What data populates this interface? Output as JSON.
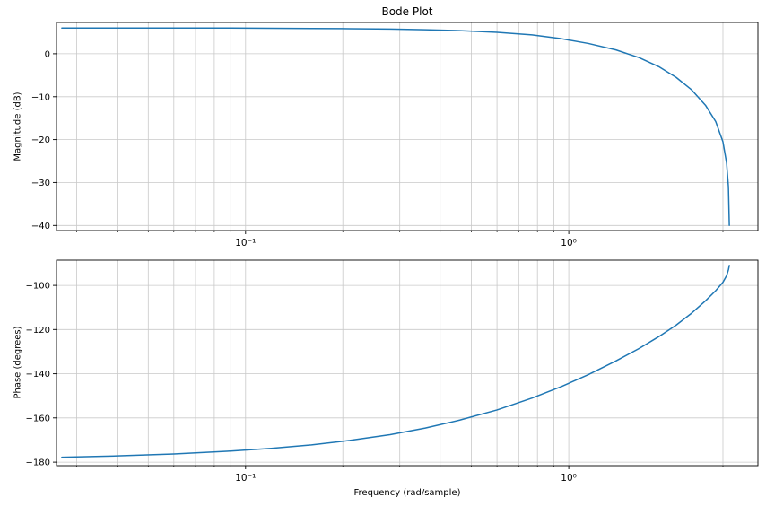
{
  "figure": {
    "title": "Bode Plot",
    "background": "#ffffff",
    "line_color": "#1f77b4",
    "grid_color": "#c9c9c9",
    "spine_color": "#000000",
    "text_color": "#000000"
  },
  "chart_data": [
    {
      "type": "line",
      "title": "Bode Plot",
      "ylabel": "Magnitude (dB)",
      "xlabel": "",
      "xscale": "log",
      "grid": true,
      "legend": "none",
      "xlim": [
        0.026,
        3.85
      ],
      "ylim": [
        -41.2,
        7.3
      ],
      "xticks": [
        0.1,
        1
      ],
      "xtick_labels": [
        "10⁻¹",
        "10⁰"
      ],
      "yticks": [
        0,
        -10,
        -20,
        -30,
        -40
      ],
      "ytick_labels": [
        "0",
        "−10",
        "−20",
        "−30",
        "−40"
      ],
      "series": [
        {
          "name": "magnitude",
          "color": "#1f77b4",
          "x": [
            0.027,
            0.04,
            0.06,
            0.09,
            0.12,
            0.16,
            0.21,
            0.28,
            0.36,
            0.46,
            0.6,
            0.77,
            0.95,
            1.15,
            1.4,
            1.65,
            1.9,
            2.15,
            2.4,
            2.65,
            2.85,
            3.0,
            3.08,
            3.12,
            3.14
          ],
          "y": [
            6.0,
            6.0,
            6.0,
            6.0,
            5.95,
            5.9,
            5.85,
            5.75,
            5.6,
            5.4,
            5.0,
            4.4,
            3.5,
            2.4,
            0.9,
            -0.9,
            -3.0,
            -5.5,
            -8.4,
            -12.0,
            -15.8,
            -20.5,
            -25.5,
            -31.0,
            -40.0
          ]
        }
      ]
    },
    {
      "type": "line",
      "title": "",
      "ylabel": "Phase (degrees)",
      "xlabel": "Frequency (rad/sample)",
      "xscale": "log",
      "grid": true,
      "legend": "none",
      "xlim": [
        0.026,
        3.85
      ],
      "ylim": [
        -181.6,
        -88.6
      ],
      "xticks": [
        0.1,
        1
      ],
      "xtick_labels": [
        "10⁻¹",
        "10⁰"
      ],
      "yticks": [
        -100,
        -120,
        -140,
        -160,
        -180
      ],
      "ytick_labels": [
        "−100",
        "−120",
        "−140",
        "−160",
        "−180"
      ],
      "series": [
        {
          "name": "phase",
          "color": "#1f77b4",
          "x": [
            0.027,
            0.04,
            0.06,
            0.09,
            0.12,
            0.16,
            0.21,
            0.28,
            0.36,
            0.46,
            0.6,
            0.77,
            0.95,
            1.15,
            1.4,
            1.65,
            1.9,
            2.15,
            2.4,
            2.65,
            2.85,
            3.0,
            3.08,
            3.12,
            3.14
          ],
          "y": [
            -177.8,
            -177.2,
            -176.3,
            -175.0,
            -173.8,
            -172.2,
            -170.2,
            -167.6,
            -164.6,
            -161.0,
            -156.4,
            -151.0,
            -145.8,
            -140.4,
            -134.2,
            -128.6,
            -123.2,
            -118.0,
            -112.6,
            -107.0,
            -102.4,
            -98.6,
            -95.6,
            -93.0,
            -91.0
          ]
        }
      ]
    }
  ]
}
